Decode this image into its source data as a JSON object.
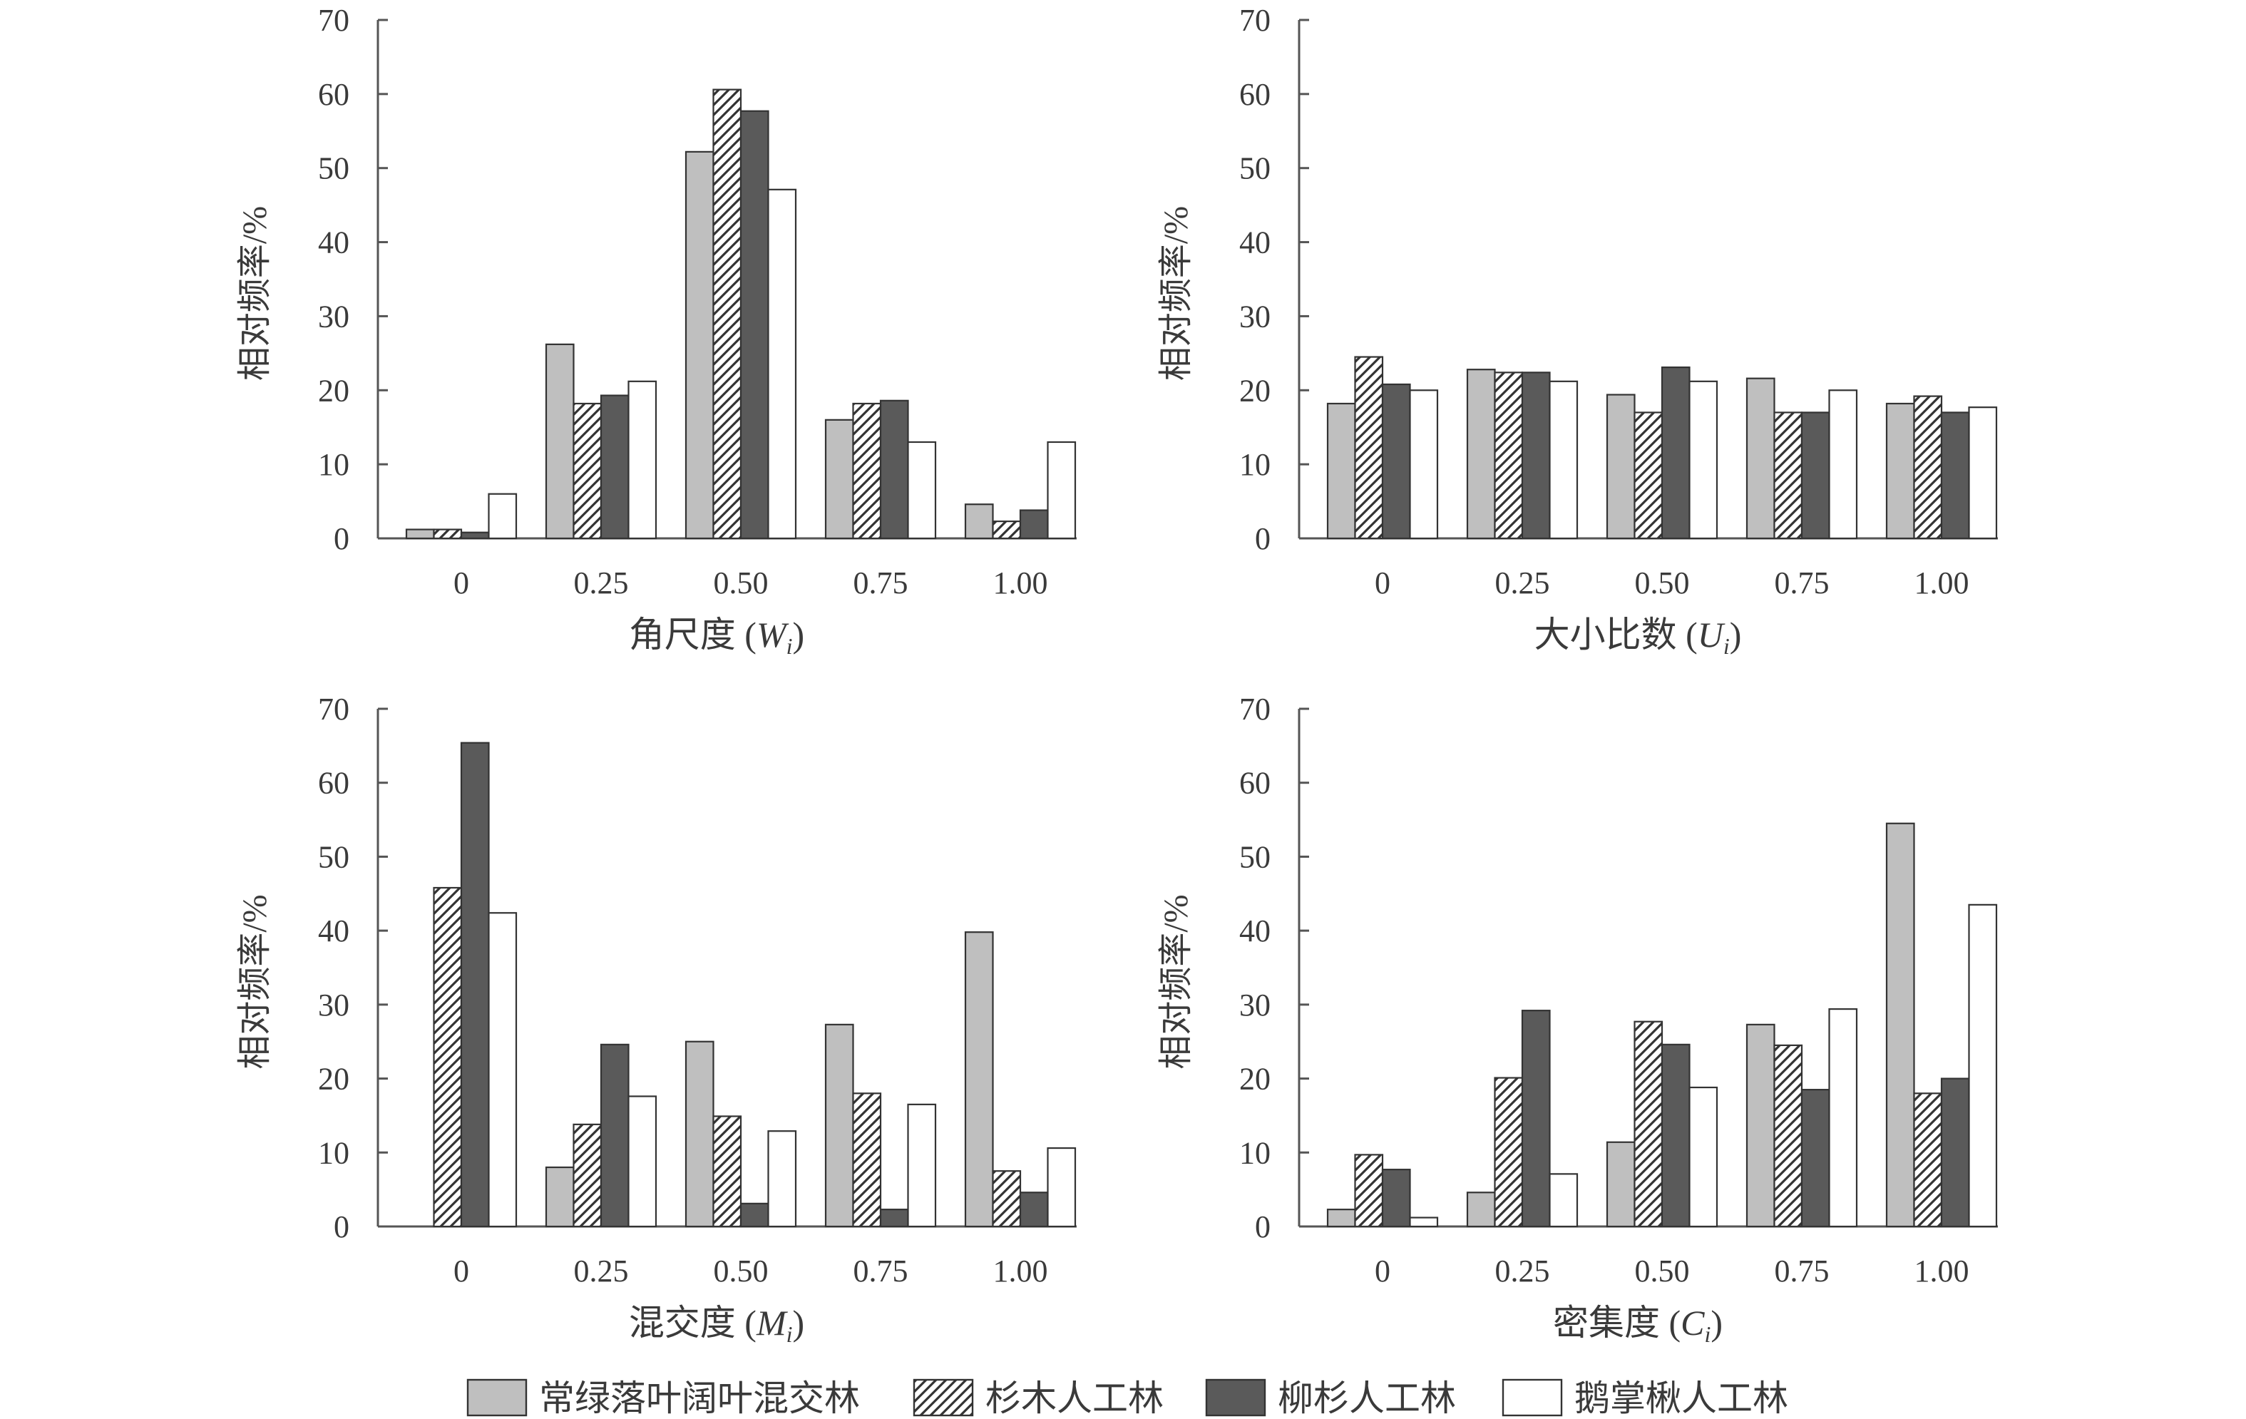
{
  "legend": {
    "series": [
      {
        "name": "常绿落叶阔叶混交林",
        "fill": "#bfbfbf",
        "pattern": "solid"
      },
      {
        "name": "杉木人工林",
        "fill": "#ffffff",
        "pattern": "hatch"
      },
      {
        "name": "柳杉人工林",
        "fill": "#5a5a5a",
        "pattern": "solid"
      },
      {
        "name": "鹅掌楸人工林",
        "fill": "#ffffff",
        "pattern": "solid"
      }
    ]
  },
  "chart_data": [
    {
      "type": "bar",
      "id": "W",
      "xlabel_main": "角尺度 (",
      "xlabel_var": "W",
      "xlabel_sub": "i",
      "xlabel_end": ")",
      "ylabel": "相对频率/%",
      "ylim": [
        0,
        70
      ],
      "yticks": [
        "0",
        "10",
        "20",
        "30",
        "40",
        "50",
        "60",
        "70"
      ],
      "categories": [
        "0",
        "0.25",
        "0.50",
        "0.75",
        "1.00"
      ],
      "series": [
        {
          "name": "常绿落叶阔叶混交林",
          "values": [
            1.2,
            26.2,
            52.2,
            16.0,
            4.6
          ]
        },
        {
          "name": "杉木人工林",
          "values": [
            1.2,
            18.2,
            60.6,
            18.2,
            2.3
          ]
        },
        {
          "name": "柳杉人工林",
          "values": [
            0.8,
            19.3,
            57.7,
            18.6,
            3.8
          ]
        },
        {
          "name": "鹅掌楸人工林",
          "values": [
            6.0,
            21.2,
            47.1,
            13.0,
            13.0
          ]
        }
      ]
    },
    {
      "type": "bar",
      "id": "U",
      "xlabel_main": "大小比数 (",
      "xlabel_var": "U",
      "xlabel_sub": "i",
      "xlabel_end": ")",
      "ylabel": "相对频率/%",
      "ylim": [
        0,
        70
      ],
      "yticks": [
        "0",
        "10",
        "20",
        "30",
        "40",
        "50",
        "60",
        "70"
      ],
      "categories": [
        "0",
        "0.25",
        "0.50",
        "0.75",
        "1.00"
      ],
      "series": [
        {
          "name": "常绿落叶阔叶混交林",
          "values": [
            18.2,
            22.8,
            19.4,
            21.6,
            18.2
          ]
        },
        {
          "name": "杉木人工林",
          "values": [
            24.5,
            22.4,
            17.0,
            17.0,
            19.2
          ]
        },
        {
          "name": "柳杉人工林",
          "values": [
            20.8,
            22.4,
            23.1,
            17.0,
            17.0
          ]
        },
        {
          "name": "鹅掌楸人工林",
          "values": [
            20.0,
            21.2,
            21.2,
            20.0,
            17.7
          ]
        }
      ]
    },
    {
      "type": "bar",
      "id": "M",
      "xlabel_main": "混交度 (",
      "xlabel_var": "M",
      "xlabel_sub": "i",
      "xlabel_end": ")",
      "ylabel": "相对频率/%",
      "ylim": [
        0,
        70
      ],
      "yticks": [
        "0",
        "10",
        "20",
        "30",
        "40",
        "50",
        "60",
        "70"
      ],
      "categories": [
        "0",
        "0.25",
        "0.50",
        "0.75",
        "1.00"
      ],
      "series": [
        {
          "name": "常绿落叶阔叶混交林",
          "values": [
            0,
            8.0,
            25.0,
            27.3,
            39.8
          ]
        },
        {
          "name": "杉木人工林",
          "values": [
            45.8,
            13.8,
            14.9,
            18.0,
            7.5
          ]
        },
        {
          "name": "柳杉人工林",
          "values": [
            65.4,
            24.6,
            3.1,
            2.3,
            4.6
          ]
        },
        {
          "name": "鹅掌楸人工林",
          "values": [
            42.4,
            17.6,
            12.9,
            16.5,
            10.6
          ]
        }
      ]
    },
    {
      "type": "bar",
      "id": "C",
      "xlabel_main": "密集度 (",
      "xlabel_var": "C",
      "xlabel_sub": "i",
      "xlabel_end": ")",
      "ylabel": "相对频率/%",
      "ylim": [
        0,
        70
      ],
      "yticks": [
        "0",
        "10",
        "20",
        "30",
        "40",
        "50",
        "60",
        "70"
      ],
      "categories": [
        "0",
        "0.25",
        "0.50",
        "0.75",
        "1.00"
      ],
      "series": [
        {
          "name": "常绿落叶阔叶混交林",
          "values": [
            2.3,
            4.6,
            11.4,
            27.3,
            54.5
          ]
        },
        {
          "name": "杉木人工林",
          "values": [
            9.7,
            20.1,
            27.7,
            24.5,
            18.0
          ]
        },
        {
          "name": "柳杉人工林",
          "values": [
            7.7,
            29.2,
            24.6,
            18.5,
            20.0
          ]
        },
        {
          "name": "鹅掌楸人工林",
          "values": [
            1.2,
            7.1,
            18.8,
            29.4,
            43.5
          ]
        }
      ]
    }
  ]
}
